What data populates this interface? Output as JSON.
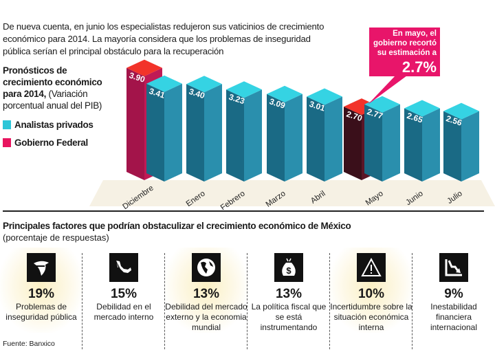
{
  "intro": "De nueva cuenta, en junio los especialistas redujeron sus vaticinios de crecimiento económico para 2014. La mayoría considera que los problemas de inseguridad pública serían el principal obstáculo para la recuperación",
  "chart_title_bold": "Pronósticos de crecimiento económico para 2014,",
  "chart_title_note": "(Variación porcentual anual del PIB)",
  "callout": {
    "text": "En mayo, el gobierno recortó su estimación a",
    "value": "2.7%"
  },
  "chart_data": {
    "type": "bar",
    "title": "Pronósticos de crecimiento económico para 2014",
    "ylabel": "Variación porcentual anual del PIB",
    "categories": [
      "Diciembre",
      "Enero",
      "Febrero",
      "Marzo",
      "Abril",
      "Mayo",
      "Junio",
      "Julio"
    ],
    "series": [
      {
        "name": "Analistas privados",
        "color": "#2cc5d8",
        "values": [
          3.41,
          3.4,
          3.23,
          3.09,
          3.01,
          2.77,
          2.65,
          2.56
        ],
        "labels": [
          "3.41",
          "3.40",
          "3.23",
          "3.09",
          "3.01",
          "2.77",
          "2.65",
          "2.56"
        ]
      },
      {
        "name": "Gobierno Federal",
        "color": "#e8155f",
        "values": [
          3.9,
          null,
          null,
          null,
          null,
          2.7,
          null,
          null
        ],
        "labels": [
          "3.90",
          null,
          null,
          null,
          null,
          "2.70",
          null,
          null
        ]
      }
    ],
    "legend": "left"
  },
  "factors_title": "Principales factores que podrían obstaculizar el crecimiento económico de México",
  "factors_subtitle": "(porcentaje de respuestas)",
  "factors": [
    {
      "pct": "19%",
      "label": "Problemas de inseguridad pública",
      "icon": "bandit-icon"
    },
    {
      "pct": "15%",
      "label": "Debilidad en el mercado interno",
      "icon": "mexico-map-icon"
    },
    {
      "pct": "13%",
      "label": "Debilidad del mercado externo y la economia mundial",
      "icon": "globe-icon"
    },
    {
      "pct": "13%",
      "label": "La política fiscal que se está instrumentando",
      "icon": "money-bag-icon"
    },
    {
      "pct": "10%",
      "label": "Incertidumbre sobre la situación económica interna",
      "icon": "warning-icon"
    },
    {
      "pct": "9%",
      "label": "Inestabilidad financiera internacional",
      "icon": "downtrend-icon"
    }
  ],
  "source": "Fuente: Banxico"
}
